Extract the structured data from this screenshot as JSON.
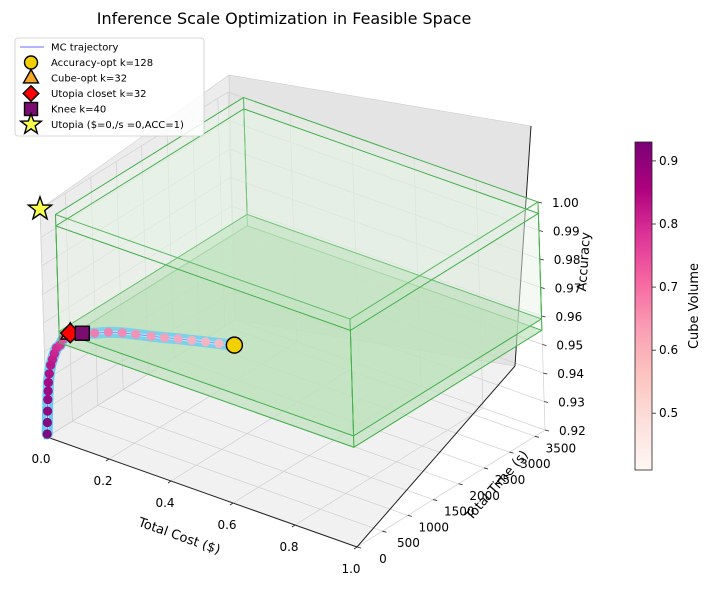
{
  "chart_data": {
    "type": "scatter3d",
    "title": "Inference Scale Optimization in Feasible Space",
    "xlabel": "Total Cost ($)",
    "ylabel": "Total Time (s)",
    "zlabel": "Accuracy",
    "xlim": [
      0,
      1.0
    ],
    "ylim": [
      0,
      3700
    ],
    "zlim": [
      0.92,
      1.0
    ],
    "x_ticks": [
      "0.0",
      "0.2",
      "0.4",
      "0.6",
      "0.8",
      "1.0"
    ],
    "y_ticks": [
      "0",
      "500",
      "1000",
      "1500",
      "2000",
      "2500",
      "3000",
      "3500"
    ],
    "z_ticks": [
      "0.92",
      "0.93",
      "0.94",
      "0.95",
      "0.96",
      "0.97",
      "0.98",
      "0.99",
      "1.00"
    ],
    "feasible_box": {
      "x": [
        0.05,
        1.0
      ],
      "y": [
        0,
        3700
      ],
      "z": [
        0.955,
        1.0
      ]
    },
    "trajectory": [
      {
        "k": 1,
        "cost": 0.0,
        "time": 5,
        "acc": 0.921
      },
      {
        "k": 2,
        "cost": 0.001,
        "time": 10,
        "acc": 0.925
      },
      {
        "k": 3,
        "cost": 0.002,
        "time": 15,
        "acc": 0.929
      },
      {
        "k": 4,
        "cost": 0.003,
        "time": 20,
        "acc": 0.933
      },
      {
        "k": 5,
        "cost": 0.004,
        "time": 25,
        "acc": 0.936
      },
      {
        "k": 6,
        "cost": 0.005,
        "time": 30,
        "acc": 0.939
      },
      {
        "k": 8,
        "cost": 0.007,
        "time": 40,
        "acc": 0.942
      },
      {
        "k": 10,
        "cost": 0.01,
        "time": 55,
        "acc": 0.945
      },
      {
        "k": 12,
        "cost": 0.014,
        "time": 70,
        "acc": 0.947
      },
      {
        "k": 14,
        "cost": 0.018,
        "time": 85,
        "acc": 0.949
      },
      {
        "k": 16,
        "cost": 0.023,
        "time": 100,
        "acc": 0.951
      },
      {
        "k": 20,
        "cost": 0.03,
        "time": 130,
        "acc": 0.952
      },
      {
        "k": 24,
        "cost": 0.036,
        "time": 160,
        "acc": 0.954
      },
      {
        "k": 28,
        "cost": 0.043,
        "time": 190,
        "acc": 0.955
      },
      {
        "k": 32,
        "cost": 0.05,
        "time": 215,
        "acc": 0.956
      },
      {
        "k": 40,
        "cost": 0.08,
        "time": 270,
        "acc": 0.9565
      },
      {
        "k": 48,
        "cost": 0.11,
        "time": 330,
        "acc": 0.957
      },
      {
        "k": 56,
        "cost": 0.145,
        "time": 390,
        "acc": 0.958
      },
      {
        "k": 64,
        "cost": 0.18,
        "time": 450,
        "acc": 0.9585
      },
      {
        "k": 72,
        "cost": 0.215,
        "time": 500,
        "acc": 0.9588
      },
      {
        "k": 80,
        "cost": 0.255,
        "time": 560,
        "acc": 0.959
      },
      {
        "k": 88,
        "cost": 0.29,
        "time": 610,
        "acc": 0.9593
      },
      {
        "k": 96,
        "cost": 0.325,
        "time": 670,
        "acc": 0.9596
      },
      {
        "k": 104,
        "cost": 0.36,
        "time": 720,
        "acc": 0.9598
      },
      {
        "k": 112,
        "cost": 0.395,
        "time": 780,
        "acc": 0.96
      },
      {
        "k": 120,
        "cost": 0.43,
        "time": 830,
        "acc": 0.9602
      },
      {
        "k": 128,
        "cost": 0.47,
        "time": 890,
        "acc": 0.9605
      }
    ],
    "markers": [
      {
        "label": "Accuracy-opt k=128",
        "k": 128,
        "cost": 0.47,
        "time": 890,
        "acc": 0.9605,
        "shape": "circle",
        "color": "#f2d000"
      },
      {
        "label": "Cube-opt k=32",
        "k": 32,
        "cost": 0.05,
        "time": 215,
        "acc": 0.956,
        "shape": "triangle",
        "color": "#f5a623"
      },
      {
        "label": "Utopia closet k=32",
        "k": 32,
        "cost": 0.05,
        "time": 215,
        "acc": 0.956,
        "shape": "diamond",
        "color": "#ff0000"
      },
      {
        "label": "Knee k=40",
        "k": 40,
        "cost": 0.08,
        "time": 270,
        "acc": 0.9565,
        "shape": "square",
        "color": "#7b0c72"
      },
      {
        "label": "Utopia ($=0,/s =0,ACC=1)",
        "k": null,
        "cost": 0,
        "time": 0,
        "acc": 1.0,
        "shape": "star",
        "color": "#f7ff4a"
      }
    ],
    "legend": {
      "position": "top-left",
      "entries": [
        "MC trajectory",
        "Accuracy-opt k=128",
        "Cube-opt k=32",
        "Utopia closet k=32",
        "Knee k=40",
        "Utopia ($=0,/s =0,ACC=1)"
      ]
    },
    "colorbar": {
      "label": "Cube Volume",
      "range": [
        0.41,
        0.93
      ],
      "ticks": [
        "0.5",
        "0.6",
        "0.7",
        "0.8",
        "0.9"
      ],
      "colors": [
        "#fff7f3",
        "#fde0dd",
        "#fcc5c0",
        "#fa9fb5",
        "#f768a1",
        "#dd3497",
        "#ae017e",
        "#7a0177"
      ]
    },
    "colors": {
      "trajectory_line": "#6b6bff",
      "tube": "#59c6f0",
      "box_edge": "#46b14e",
      "box_fill_top": "#e8f6e8",
      "box_fill_bottom": "#b3ddb1"
    }
  }
}
